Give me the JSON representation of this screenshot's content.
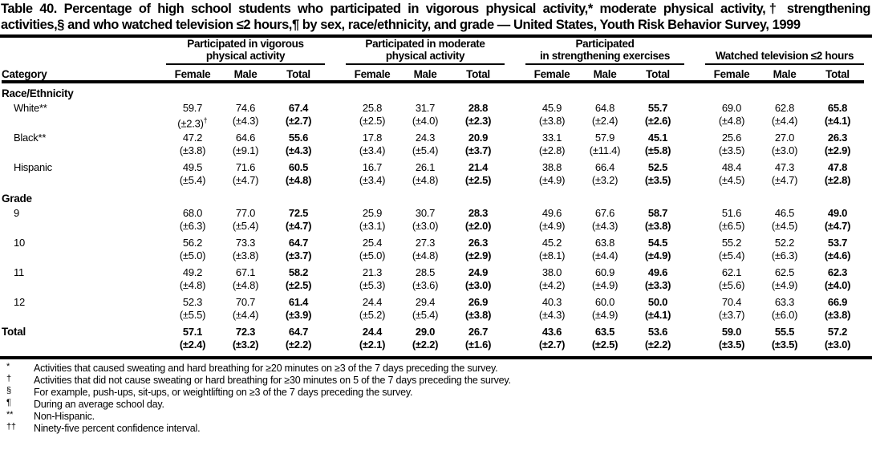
{
  "title": "Table 40. Percentage of high school students who participated in vigorous physical activity,* moderate physical activity,† strengthening activities,§ and who watched television ≤2 hours,¶ by sex, race/ethnicity, and grade — United States, Youth Risk Behavior Survey, 1999",
  "table": {
    "category_header": "Category",
    "sub_headers": [
      "Female",
      "Male",
      "Total"
    ],
    "groups": [
      {
        "lines": [
          "Participated in vigorous",
          "physical activity"
        ]
      },
      {
        "lines": [
          "Participated in moderate",
          "physical activity"
        ]
      },
      {
        "lines": [
          "Participated",
          "in strengthening exercises"
        ]
      },
      {
        "lines": [
          "Watched television ≤2 hours"
        ]
      }
    ],
    "rows": [
      {
        "type": "section",
        "label": "Race/Ethnicity"
      },
      {
        "type": "data",
        "label": "White**",
        "values": [
          "59.7",
          "74.6",
          "67.4",
          "25.8",
          "31.7",
          "28.8",
          "45.9",
          "64.8",
          "55.7",
          "69.0",
          "62.8",
          "65.8"
        ],
        "ci": [
          "(±2.3)†",
          "(±4.3)",
          "(±2.7)",
          "(±2.5)",
          "(±4.0)",
          "(±2.3)",
          "(±3.8)",
          "(±2.4)",
          "(±2.6)",
          "(±4.8)",
          "(±4.4)",
          "(±4.1)"
        ]
      },
      {
        "type": "data",
        "label": "Black**",
        "values": [
          "47.2",
          "64.6",
          "55.6",
          "17.8",
          "24.3",
          "20.9",
          "33.1",
          "57.9",
          "45.1",
          "25.6",
          "27.0",
          "26.3"
        ],
        "ci": [
          "(±3.8)",
          "(±9.1)",
          "(±4.3)",
          "(±3.4)",
          "(±5.4)",
          "(±3.7)",
          "(±2.8)",
          "(±11.4)",
          "(±5.8)",
          "(±3.5)",
          "(±3.0)",
          "(±2.9)"
        ]
      },
      {
        "type": "data",
        "label": "Hispanic",
        "values": [
          "49.5",
          "71.6",
          "60.5",
          "16.7",
          "26.1",
          "21.4",
          "38.8",
          "66.4",
          "52.5",
          "48.4",
          "47.3",
          "47.8"
        ],
        "ci": [
          "(±5.4)",
          "(±4.7)",
          "(±4.8)",
          "(±3.4)",
          "(±4.8)",
          "(±2.5)",
          "(±4.9)",
          "(±3.2)",
          "(±3.5)",
          "(±4.5)",
          "(±4.7)",
          "(±2.8)"
        ]
      },
      {
        "type": "section",
        "label": "Grade"
      },
      {
        "type": "data",
        "label": "9",
        "values": [
          "68.0",
          "77.0",
          "72.5",
          "25.9",
          "30.7",
          "28.3",
          "49.6",
          "67.6",
          "58.7",
          "51.6",
          "46.5",
          "49.0"
        ],
        "ci": [
          "(±6.3)",
          "(±5.4)",
          "(±4.7)",
          "(±3.1)",
          "(±3.0)",
          "(±2.0)",
          "(±4.9)",
          "(±4.3)",
          "(±3.8)",
          "(±6.5)",
          "(±4.5)",
          "(±4.7)"
        ]
      },
      {
        "type": "data",
        "label": "10",
        "values": [
          "56.2",
          "73.3",
          "64.7",
          "25.4",
          "27.3",
          "26.3",
          "45.2",
          "63.8",
          "54.5",
          "55.2",
          "52.2",
          "53.7"
        ],
        "ci": [
          "(±5.0)",
          "(±3.8)",
          "(±3.7)",
          "(±5.0)",
          "(±4.8)",
          "(±2.9)",
          "(±8.1)",
          "(±4.4)",
          "(±4.9)",
          "(±5.4)",
          "(±6.3)",
          "(±4.6)"
        ]
      },
      {
        "type": "data",
        "label": "11",
        "values": [
          "49.2",
          "67.1",
          "58.2",
          "21.3",
          "28.5",
          "24.9",
          "38.0",
          "60.9",
          "49.6",
          "62.1",
          "62.5",
          "62.3"
        ],
        "ci": [
          "(±4.8)",
          "(±4.8)",
          "(±2.5)",
          "(±5.3)",
          "(±3.6)",
          "(±3.0)",
          "(±4.2)",
          "(±4.9)",
          "(±3.3)",
          "(±5.6)",
          "(±4.9)",
          "(±4.0)"
        ]
      },
      {
        "type": "data",
        "label": "12",
        "values": [
          "52.3",
          "70.7",
          "61.4",
          "24.4",
          "29.4",
          "26.9",
          "40.3",
          "60.0",
          "50.0",
          "70.4",
          "63.3",
          "66.9"
        ],
        "ci": [
          "(±5.5)",
          "(±4.4)",
          "(±3.9)",
          "(±5.2)",
          "(±5.4)",
          "(±3.8)",
          "(±4.3)",
          "(±4.9)",
          "(±4.1)",
          "(±3.7)",
          "(±6.0)",
          "(±3.8)"
        ]
      },
      {
        "type": "data",
        "label": "Total",
        "bold": true,
        "values": [
          "57.1",
          "72.3",
          "64.7",
          "24.4",
          "29.0",
          "26.7",
          "43.6",
          "63.5",
          "53.6",
          "59.0",
          "55.5",
          "57.2"
        ],
        "ci": [
          "(±2.4)",
          "(±3.2)",
          "(±2.2)",
          "(±2.1)",
          "(±2.2)",
          "(±1.6)",
          "(±2.7)",
          "(±2.5)",
          "(±2.2)",
          "(±3.5)",
          "(±3.5)",
          "(±3.0)"
        ]
      }
    ]
  },
  "footnotes": [
    {
      "marker": "*",
      "text": "Activities that caused sweating and hard breathing for ≥20 minutes on ≥3 of the 7 days preceding the survey."
    },
    {
      "marker": "†",
      "text": "Activities that did not cause sweating or hard breathing for ≥30 minutes on 5 of the 7 days preceding the survey."
    },
    {
      "marker": "§",
      "text": "For example, push-ups, sit-ups, or weightlifting on ≥3 of the 7 days preceding the survey."
    },
    {
      "marker": "¶",
      "text": "During an average school day."
    },
    {
      "marker": "**",
      "text": "Non-Hispanic."
    },
    {
      "marker": "††",
      "text": "Ninety-five percent confidence interval."
    }
  ]
}
